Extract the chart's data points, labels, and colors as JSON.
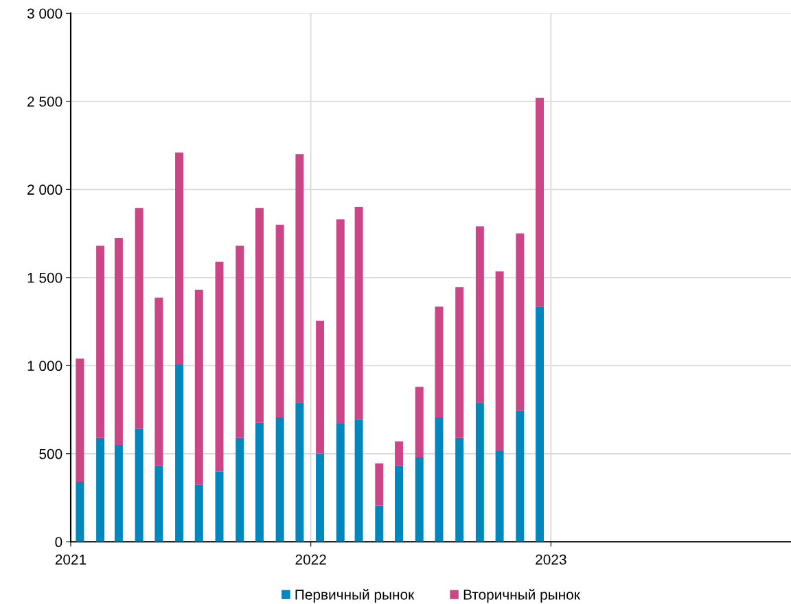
{
  "chart_data": {
    "type": "bar",
    "stacked": true,
    "x": [
      "2021-01-15",
      "2021-02-15",
      "2021-03-15",
      "2021-04-15",
      "2021-05-15",
      "2021-06-15",
      "2021-07-15",
      "2021-08-15",
      "2021-09-15",
      "2021-10-15",
      "2021-11-15",
      "2021-12-15",
      "2022-01-15",
      "2022-02-15",
      "2022-03-15",
      "2022-04-15",
      "2022-05-15",
      "2022-06-15",
      "2022-07-15",
      "2022-08-15",
      "2022-09-15",
      "2022-10-15",
      "2022-11-15",
      "2022-12-15"
    ],
    "series": [
      {
        "name": "Первичный рынок",
        "color": "#0087bd",
        "values": [
          340,
          590,
          550,
          640,
          430,
          1005,
          325,
          400,
          590,
          675,
          705,
          790,
          500,
          670,
          695,
          205,
          430,
          480,
          705,
          590,
          790,
          515,
          745,
          1335
        ]
      },
      {
        "name": "Вторичный рынок",
        "color": "#cc4586",
        "values": [
          700,
          1090,
          1175,
          1255,
          955,
          1205,
          1105,
          1190,
          1090,
          1220,
          1095,
          1410,
          755,
          1160,
          1205,
          240,
          140,
          400,
          630,
          855,
          1000,
          1020,
          1005,
          1185
        ]
      }
    ],
    "xlim": [
      "2021-01-01",
      "2024-01-01"
    ],
    "xticks": [
      {
        "value": "2021-01-01",
        "label": "2021"
      },
      {
        "value": "2022-01-01",
        "label": "2022"
      },
      {
        "value": "2023-01-01",
        "label": "2023"
      }
    ],
    "ylim": [
      0,
      3000
    ],
    "yticks": [
      0,
      500,
      {
        "value": 1000,
        "label": "1 000"
      },
      {
        "value": 1500,
        "label": "1 500"
      },
      {
        "value": 2000,
        "label": "2 000"
      },
      {
        "value": 2500,
        "label": "2 500"
      },
      {
        "value": 3000,
        "label": "3 000"
      }
    ],
    "grid": true,
    "legend": "bottom"
  }
}
